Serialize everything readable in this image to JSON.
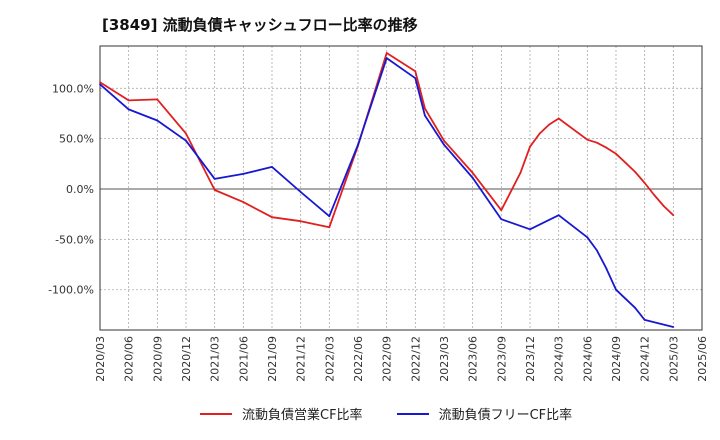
{
  "title": "[3849]  流動負債キャッシュフロー比率の推移",
  "chart_data": {
    "type": "line",
    "title": "[3849]  流動負債キャッシュフロー比率の推移",
    "xlabel": "",
    "ylabel": "",
    "x_ticks": [
      "2020/03",
      "2020/06",
      "2020/09",
      "2020/12",
      "2021/03",
      "2021/06",
      "2021/09",
      "2021/12",
      "2022/03",
      "2022/06",
      "2022/09",
      "2022/12",
      "2023/03",
      "2023/06",
      "2023/09",
      "2023/12",
      "2024/03",
      "2024/06",
      "2024/09",
      "2024/12",
      "2025/03",
      "2025/06"
    ],
    "y_ticks": [
      100,
      50,
      0,
      -50,
      -100
    ],
    "y_tick_labels": [
      "100.0%",
      "50.0%",
      "0.0%",
      "-50.0%",
      "-100.0%"
    ],
    "ylim": [
      -140,
      142
    ],
    "grid": true,
    "legend_position": "bottom",
    "series": [
      {
        "name": "流動負債営業CF比率",
        "color": "#e02020",
        "x": [
          "2020/03",
          "2020/06",
          "2020/09",
          "2020/12",
          "2021/03",
          "2021/06",
          "2021/09",
          "2021/12",
          "2022/03",
          "2022/06",
          "2022/09",
          "2022/12",
          "2023/01",
          "2023/03",
          "2023/06",
          "2023/09",
          "2023/11",
          "2023/12",
          "2024/01",
          "2024/02",
          "2024/03",
          "2024/06",
          "2024/07",
          "2024/08",
          "2024/09",
          "2024/10",
          "2024/11",
          "2024/12",
          "2025/01",
          "2025/02",
          "2025/03"
        ],
        "values": [
          106,
          88,
          89,
          55,
          -1,
          -13,
          -28,
          -32,
          -38,
          43,
          135,
          117,
          80,
          48,
          16,
          -21,
          16,
          42,
          55,
          64,
          70,
          49,
          46,
          41,
          35,
          26,
          17,
          6,
          -6,
          -17,
          -26
        ]
      },
      {
        "name": "流動負債フリーCF比率",
        "color": "#1818d0",
        "x": [
          "2020/03",
          "2020/06",
          "2020/09",
          "2020/12",
          "2021/03",
          "2021/06",
          "2021/09",
          "2021/12",
          "2022/03",
          "2022/06",
          "2022/09",
          "2022/12",
          "2023/01",
          "2023/03",
          "2023/06",
          "2023/09",
          "2023/12",
          "2024/03",
          "2024/06",
          "2024/07",
          "2024/08",
          "2024/09",
          "2024/10",
          "2024/11",
          "2024/12",
          "2025/03"
        ],
        "values": [
          104,
          79,
          68,
          48,
          10,
          15,
          22,
          -3,
          -27,
          44,
          130,
          110,
          73,
          44,
          11,
          -30,
          -40,
          -26,
          -48,
          -61,
          -79,
          -100,
          -109,
          -118,
          -130,
          -137
        ]
      }
    ]
  }
}
